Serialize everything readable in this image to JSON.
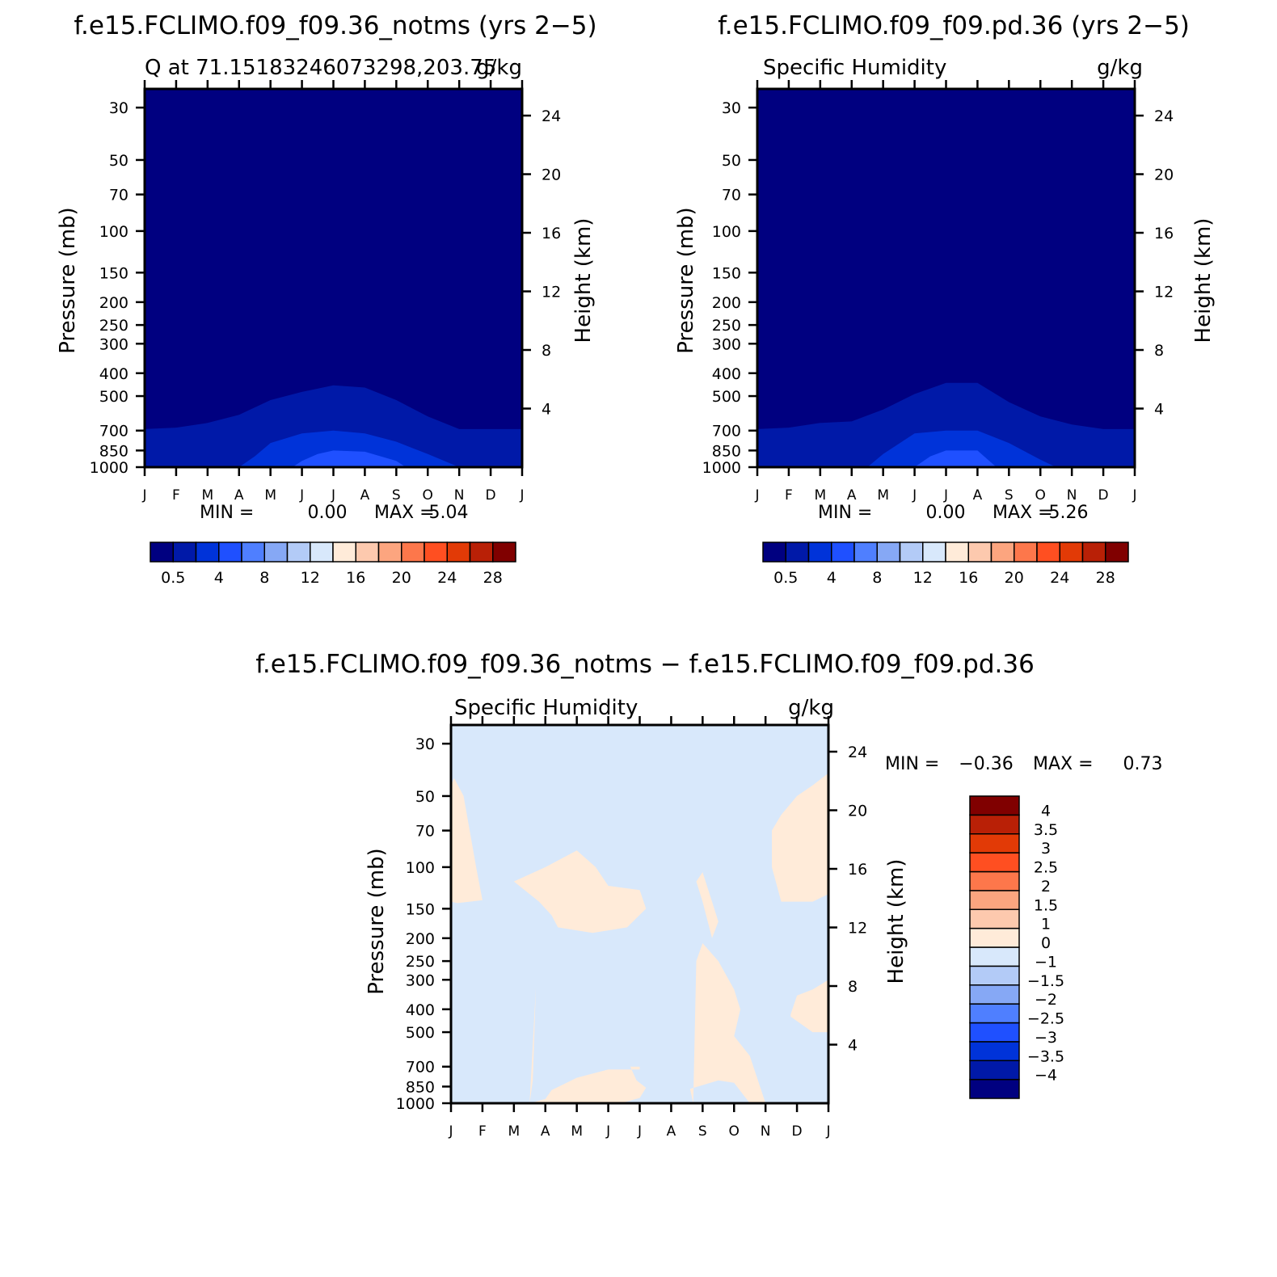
{
  "colors": {
    "abs_levels": [
      "#000080",
      "#0019a8",
      "#0033d9",
      "#1f50ff",
      "#4f7fff",
      "#86a8f5",
      "#b3cbf7",
      "#d8e8fb",
      "#ffebd9",
      "#fdc9ae",
      "#fca57f",
      "#fd774b",
      "#ff4f21",
      "#e23a06",
      "#b92006",
      "#800000"
    ],
    "diff_levels": [
      "#000080",
      "#0019a8",
      "#0033d9",
      "#1f50ff",
      "#4f7fff",
      "#86a8f5",
      "#b3cbf7",
      "#d8e8fb",
      "#ffebd9",
      "#fdc9ae",
      "#fca57f",
      "#fd774b",
      "#ff4f21",
      "#e23a06",
      "#b92006",
      "#800000"
    ],
    "diff_positive": "#ffebd9",
    "diff_negative": "#d8e8fb"
  },
  "chart_data": [
    {
      "type": "heatmap",
      "title": "f.e15.FCLIMO.f09_f09.36_notms (yrs 2−5)",
      "subtitle_left": "Q at 71.15183246073298,203.75",
      "subtitle_right": "g/kg",
      "ylabel": "Pressure (mb)",
      "ylabel_right": "Height (km)",
      "x_ticks": [
        "J",
        "F",
        "M",
        "A",
        "M",
        "J",
        "J",
        "A",
        "S",
        "O",
        "N",
        "D",
        "J"
      ],
      "y_ticks": [
        "30",
        "50",
        "70",
        "100",
        "150",
        "200",
        "250",
        "300",
        "400",
        "500",
        "700",
        "850",
        "1000"
      ],
      "y_ticks_right": [
        "24",
        "20",
        "16",
        "12",
        "8",
        "4"
      ],
      "ylim": [
        1000,
        25
      ],
      "min_label": "MIN =",
      "min_value": "0.00",
      "max_label": "MAX =",
      "max_value": "5.04",
      "contour_levels": [
        0.5,
        1.0,
        1.5
      ],
      "contour_boundaries": [
        {
          "level": 0.5,
          "months": [
            0,
            1,
            2,
            3,
            4,
            5,
            6,
            7,
            8,
            9,
            10,
            11,
            12
          ],
          "pressure": [
            690,
            680,
            650,
            600,
            520,
            480,
            450,
            460,
            520,
            610,
            690,
            690,
            690
          ]
        },
        {
          "level": 1.0,
          "months": [
            3,
            3.5,
            4,
            5,
            6,
            7,
            8,
            9,
            10,
            10.5
          ],
          "pressure": [
            1000,
            900,
            790,
            720,
            700,
            720,
            780,
            880,
            1000,
            1000
          ]
        },
        {
          "level": 1.5,
          "months": [
            4.7,
            5,
            5.5,
            6,
            7,
            8,
            8.3
          ],
          "pressure": [
            1000,
            940,
            880,
            850,
            860,
            940,
            1000
          ]
        }
      ],
      "colorbar_labels": [
        "0.5",
        "4",
        "8",
        "12",
        "16",
        "20",
        "24",
        "28"
      ]
    },
    {
      "type": "heatmap",
      "title": "f.e15.FCLIMO.f09_f09.pd.36 (yrs 2−5)",
      "subtitle_left": "Specific Humidity",
      "subtitle_right": "g/kg",
      "ylabel": "Pressure (mb)",
      "ylabel_right": "Height (km)",
      "x_ticks": [
        "J",
        "F",
        "M",
        "A",
        "M",
        "J",
        "J",
        "A",
        "S",
        "O",
        "N",
        "D",
        "J"
      ],
      "y_ticks": [
        "30",
        "50",
        "70",
        "100",
        "150",
        "200",
        "250",
        "300",
        "400",
        "500",
        "700",
        "850",
        "1000"
      ],
      "y_ticks_right": [
        "24",
        "20",
        "16",
        "12",
        "8",
        "4"
      ],
      "ylim": [
        1000,
        25
      ],
      "min_label": "MIN =",
      "min_value": "0.00",
      "max_label": "MAX =",
      "max_value": "5.26",
      "contour_levels": [
        0.5,
        1.0,
        1.5
      ],
      "contour_boundaries": [
        {
          "level": 0.5,
          "months": [
            0,
            1,
            2,
            3,
            4,
            5,
            6,
            6.5,
            7,
            8,
            9,
            10,
            11,
            12
          ],
          "pressure": [
            690,
            680,
            650,
            640,
            570,
            490,
            440,
            440,
            440,
            530,
            610,
            660,
            690,
            690
          ]
        },
        {
          "level": 1.0,
          "months": [
            3.5,
            4,
            5,
            6,
            7,
            8,
            9,
            9.5
          ],
          "pressure": [
            1000,
            880,
            720,
            700,
            700,
            790,
            930,
            1000
          ]
        },
        {
          "level": 1.5,
          "months": [
            5,
            5.5,
            6,
            7,
            7.6
          ],
          "pressure": [
            1000,
            900,
            850,
            850,
            1000
          ]
        }
      ],
      "colorbar_labels": [
        "0.5",
        "4",
        "8",
        "12",
        "16",
        "20",
        "24",
        "28"
      ]
    },
    {
      "type": "heatmap",
      "title": "f.e15.FCLIMO.f09_f09.36_notms − f.e15.FCLIMO.f09_f09.pd.36",
      "subtitle_left": "Specific Humidity",
      "subtitle_right": "g/kg",
      "ylabel": "Pressure (mb)",
      "ylabel_right": "Height (km)",
      "x_ticks": [
        "J",
        "F",
        "M",
        "A",
        "M",
        "J",
        "J",
        "A",
        "S",
        "O",
        "N",
        "D",
        "J"
      ],
      "y_ticks": [
        "30",
        "50",
        "70",
        "100",
        "150",
        "200",
        "250",
        "300",
        "400",
        "500",
        "700",
        "850",
        "1000"
      ],
      "y_ticks_right": [
        "24",
        "20",
        "16",
        "12",
        "8",
        "4"
      ],
      "ylim": [
        1000,
        25
      ],
      "min_label": "MIN =",
      "min_value": "−0.36",
      "max_label": "MAX =",
      "max_value": "0.73",
      "contour_levels": [
        0
      ],
      "positive_regions": [
        {
          "months": [
            0,
            0.1,
            0.4,
            0.8,
            1.0,
            0.6,
            0.2,
            0.0
          ],
          "pressure": [
            45,
            42,
            50,
            100,
            138,
            140,
            142,
            140
          ]
        },
        {
          "months": [
            2,
            3,
            4.0,
            4.6,
            5,
            6,
            6.2,
            5.6,
            4.5,
            3.4,
            3.2,
            2.8
          ],
          "pressure": [
            115,
            100,
            85,
            100,
            120,
            125,
            150,
            180,
            190,
            180,
            160,
            140
          ]
        },
        {
          "months": [
            2.5,
            3,
            3.2,
            4,
            5,
            6,
            6.0,
            5.7,
            5.9,
            6.2,
            6.0,
            5.4,
            5.2,
            5.0,
            4.0,
            3.0,
            2.5,
            2.6,
            2.7
          ],
          "pressure": [
            1000,
            960,
            880,
            780,
            720,
            720,
            700,
            700,
            800,
            860,
            950,
            1000,
            1000,
            1000,
            1000,
            1000,
            1000,
            800,
            320
          ]
        },
        {
          "months": [
            8,
            8.3,
            8.5,
            8.3,
            8.0,
            7.8
          ],
          "pressure": [
            105,
            140,
            170,
            200,
            140,
            115
          ]
        },
        {
          "months": [
            8,
            8.5,
            9.0,
            9.2,
            9.0,
            9.5,
            10,
            9.5,
            9.0,
            8.5,
            7.6,
            7.7,
            7.8
          ],
          "pressure": [
            210,
            250,
            330,
            400,
            520,
            630,
            1000,
            1000,
            820,
            800,
            870,
            1000,
            250
          ]
        },
        {
          "months": [
            10.2,
            10.5,
            11,
            11.5,
            12,
            12,
            11.5,
            10.5,
            10.2
          ],
          "pressure": [
            70,
            60,
            50,
            45,
            40,
            130,
            140,
            140,
            100
          ]
        },
        {
          "months": [
            10.8,
            11,
            11.5,
            12,
            12,
            11.5,
            10.8,
            10.8
          ],
          "pressure": [
            420,
            350,
            330,
            300,
            500,
            500,
            430,
            420
          ]
        }
      ],
      "colorbar_labels": [
        "4",
        "3.5",
        "3",
        "2.5",
        "2",
        "1.5",
        "1",
        "0",
        "−1",
        "−1.5",
        "−2",
        "−2.5",
        "−3",
        "−3.5",
        "−4"
      ]
    }
  ]
}
